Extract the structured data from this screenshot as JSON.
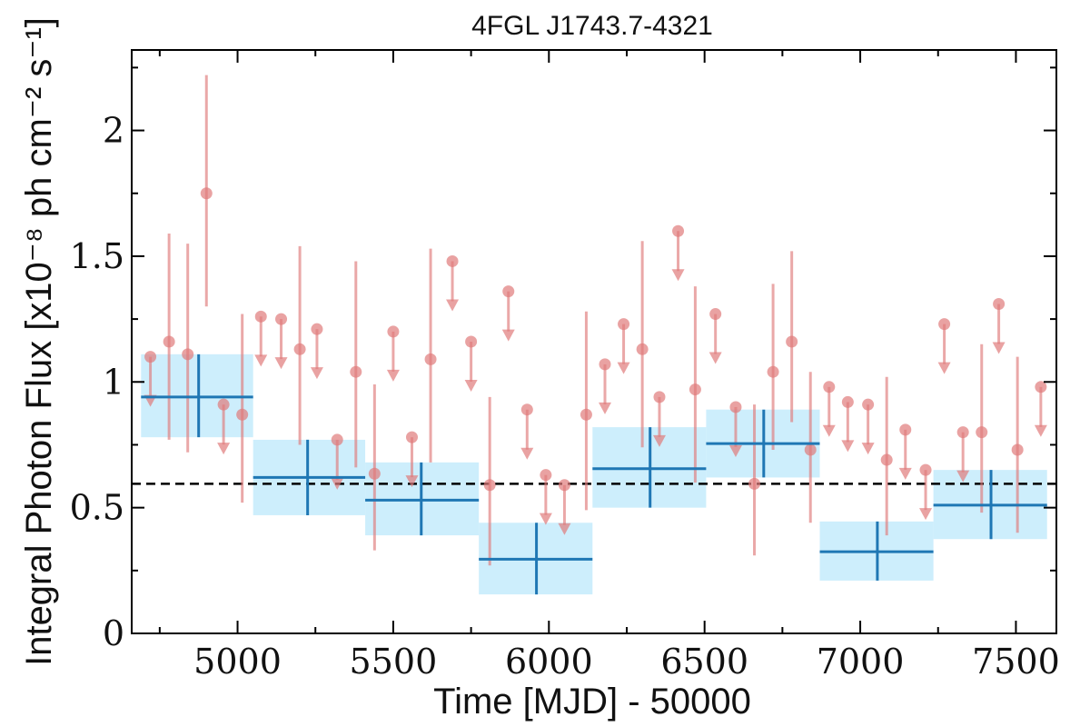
{
  "chart_data": {
    "type": "scatter",
    "title": "4FGL J1743.7-4321",
    "xlabel": "Time [MJD] - 50000",
    "ylabel": "Integral Photon Flux [x10⁻⁸ ph cm⁻² s⁻¹]",
    "xlim": [
      4660,
      7630
    ],
    "ylim": [
      0,
      2.32
    ],
    "xticks": [
      5000,
      5500,
      6000,
      6500,
      7000,
      7500
    ],
    "xtick_labels": [
      "5000",
      "5500",
      "6000",
      "6500",
      "7000",
      "7500"
    ],
    "yticks": [
      0,
      0.5,
      1,
      1.5,
      2
    ],
    "ytick_labels": [
      "0",
      "0.5",
      "1",
      "1.5",
      "2"
    ],
    "reference_line": 0.595,
    "grid": false,
    "colors": {
      "short_bin": "#e07b7b",
      "long_bin": "#1f77b4",
      "long_bin_fill": "#cdeefc",
      "reference_line": "#000000"
    },
    "series": [
      {
        "kind": "short_bin_detections",
        "points": [
          {
            "x": 4780,
            "y": 1.16,
            "ylo": 0.77,
            "yhi": 1.59
          },
          {
            "x": 4840,
            "y": 1.11,
            "ylo": 0.72,
            "yhi": 1.55
          },
          {
            "x": 4900,
            "y": 1.75,
            "ylo": 1.3,
            "yhi": 2.22
          },
          {
            "x": 5015,
            "y": 0.87,
            "ylo": 0.52,
            "yhi": 1.27
          },
          {
            "x": 5200,
            "y": 1.13,
            "ylo": 0.75,
            "yhi": 1.54
          },
          {
            "x": 5380,
            "y": 1.04,
            "ylo": 0.66,
            "yhi": 1.48
          },
          {
            "x": 5440,
            "y": 0.635,
            "ylo": 0.33,
            "yhi": 0.99
          },
          {
            "x": 5620,
            "y": 1.09,
            "ylo": 0.68,
            "yhi": 1.53
          },
          {
            "x": 5810,
            "y": 0.59,
            "ylo": 0.27,
            "yhi": 0.94
          },
          {
            "x": 6120,
            "y": 0.87,
            "ylo": 0.49,
            "yhi": 1.28
          },
          {
            "x": 6300,
            "y": 1.13,
            "ylo": 0.74,
            "yhi": 1.56
          },
          {
            "x": 6470,
            "y": 0.97,
            "ylo": 0.6,
            "yhi": 1.38
          },
          {
            "x": 6660,
            "y": 0.595,
            "ylo": 0.31,
            "yhi": 0.91
          },
          {
            "x": 6720,
            "y": 1.04,
            "ylo": 0.73,
            "yhi": 1.39
          },
          {
            "x": 6780,
            "y": 1.16,
            "ylo": 0.84,
            "yhi": 1.52
          },
          {
            "x": 6840,
            "y": 0.73,
            "ylo": 0.44,
            "yhi": 1.04
          },
          {
            "x": 7085,
            "y": 0.69,
            "ylo": 0.39,
            "yhi": 1.02
          },
          {
            "x": 7390,
            "y": 0.8,
            "ylo": 0.48,
            "yhi": 1.15
          },
          {
            "x": 7505,
            "y": 0.73,
            "ylo": 0.4,
            "yhi": 1.1
          }
        ]
      },
      {
        "kind": "short_bin_upper_limits",
        "points": [
          {
            "x": 4720,
            "y": 1.1
          },
          {
            "x": 4955,
            "y": 0.91
          },
          {
            "x": 5075,
            "y": 1.26
          },
          {
            "x": 5140,
            "y": 1.25
          },
          {
            "x": 5255,
            "y": 1.21
          },
          {
            "x": 5320,
            "y": 0.77
          },
          {
            "x": 5500,
            "y": 1.2
          },
          {
            "x": 5560,
            "y": 0.78
          },
          {
            "x": 5690,
            "y": 1.48
          },
          {
            "x": 5750,
            "y": 1.16
          },
          {
            "x": 5870,
            "y": 1.36
          },
          {
            "x": 5930,
            "y": 0.89
          },
          {
            "x": 5990,
            "y": 0.63
          },
          {
            "x": 6050,
            "y": 0.59
          },
          {
            "x": 6180,
            "y": 1.07
          },
          {
            "x": 6240,
            "y": 1.23
          },
          {
            "x": 6355,
            "y": 0.94
          },
          {
            "x": 6415,
            "y": 1.6
          },
          {
            "x": 6535,
            "y": 1.27
          },
          {
            "x": 6600,
            "y": 0.9
          },
          {
            "x": 6900,
            "y": 0.98
          },
          {
            "x": 6960,
            "y": 0.92
          },
          {
            "x": 7025,
            "y": 0.91
          },
          {
            "x": 7145,
            "y": 0.81
          },
          {
            "x": 7210,
            "y": 0.65
          },
          {
            "x": 7270,
            "y": 1.23
          },
          {
            "x": 7330,
            "y": 0.8
          },
          {
            "x": 7445,
            "y": 1.31
          },
          {
            "x": 7580,
            "y": 0.98
          }
        ]
      },
      {
        "kind": "long_bins",
        "points": [
          {
            "x": 4875,
            "x0": 4690,
            "x1": 5050,
            "y": 0.94,
            "ylo": 0.78,
            "yhi": 1.11
          },
          {
            "x": 5225,
            "x0": 5050,
            "x1": 5410,
            "y": 0.62,
            "ylo": 0.47,
            "yhi": 0.77
          },
          {
            "x": 5590,
            "x0": 5410,
            "x1": 5775,
            "y": 0.53,
            "ylo": 0.39,
            "yhi": 0.68
          },
          {
            "x": 5960,
            "x0": 5775,
            "x1": 6140,
            "y": 0.295,
            "ylo": 0.155,
            "yhi": 0.44
          },
          {
            "x": 6325,
            "x0": 6140,
            "x1": 6505,
            "y": 0.655,
            "ylo": 0.5,
            "yhi": 0.82
          },
          {
            "x": 6690,
            "x0": 6505,
            "x1": 6870,
            "y": 0.755,
            "ylo": 0.62,
            "yhi": 0.89
          },
          {
            "x": 7055,
            "x0": 6870,
            "x1": 7235,
            "y": 0.325,
            "ylo": 0.21,
            "yhi": 0.445
          },
          {
            "x": 7420,
            "x0": 7235,
            "x1": 7600,
            "y": 0.51,
            "ylo": 0.375,
            "yhi": 0.65
          }
        ]
      }
    ]
  }
}
